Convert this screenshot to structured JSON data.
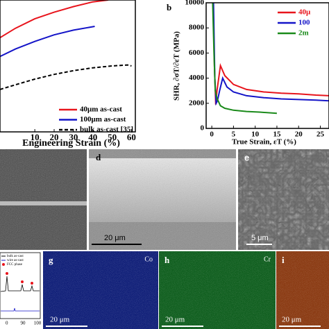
{
  "chart_data": [
    {
      "type": "line",
      "xlabel": "Engineering Strain (%)",
      "xlim": [
        -8,
        62
      ],
      "ylim": [
        0,
        1400
      ],
      "xticks": [
        10,
        20,
        30,
        40,
        50,
        60
      ],
      "series": [
        {
          "name": "40μm as-cast",
          "color": "#e8141c",
          "dash": false,
          "x": [
            -8,
            0,
            10,
            20,
            30,
            40,
            48
          ],
          "values": [
            1000,
            1100,
            1200,
            1270,
            1330,
            1380,
            1400
          ]
        },
        {
          "name": "100μm as-cast",
          "color": "#1414c8",
          "dash": false,
          "x": [
            -8,
            0,
            10,
            20,
            30,
            41
          ],
          "values": [
            800,
            880,
            960,
            1030,
            1080,
            1120
          ]
        },
        {
          "name": "bulk as-cast [35]",
          "color": "#000000",
          "dash": true,
          "x": [
            -8,
            0,
            10,
            20,
            30,
            40,
            50,
            58,
            60
          ],
          "values": [
            450,
            500,
            560,
            610,
            650,
            680,
            700,
            710,
            700
          ]
        }
      ]
    },
    {
      "type": "line",
      "label": "b",
      "ylabel": "SHR, ∂σT/∂εT (MPa)",
      "xlabel": "True Strain, εT (%)",
      "xlim": [
        -1.3,
        27
      ],
      "ylim": [
        0,
        10000
      ],
      "xticks": [
        0,
        5,
        10,
        15,
        20,
        25
      ],
      "yticks": [
        0,
        2000,
        4000,
        6000,
        8000,
        10000
      ],
      "series": [
        {
          "name": "40μ",
          "color": "#e8141c",
          "x": [
            0.3,
            0.6,
            0.9,
            1.2,
            1.6,
            2,
            3,
            5,
            8,
            12,
            16,
            20,
            24,
            27
          ],
          "values": [
            10000,
            5000,
            1900,
            3000,
            4000,
            5000,
            4200,
            3500,
            3100,
            2900,
            2800,
            2750,
            2650,
            2600
          ]
        },
        {
          "name": "100",
          "color": "#1414c8",
          "x": [
            0.4,
            0.7,
            1,
            1.3,
            1.8,
            2.5,
            3.5,
            5,
            8,
            12,
            16,
            20,
            24,
            27
          ],
          "values": [
            10000,
            4000,
            2000,
            2200,
            3000,
            4000,
            3300,
            2900,
            2600,
            2450,
            2350,
            2300,
            2250,
            2200
          ]
        },
        {
          "name": "2m",
          "color": "#1a8a1a",
          "x": [
            0.2,
            0.5,
            0.8,
            1.2,
            2,
            3,
            5,
            8,
            11,
            15
          ],
          "values": [
            10000,
            6000,
            3000,
            2400,
            1800,
            1600,
            1450,
            1350,
            1300,
            1200
          ]
        }
      ]
    }
  ],
  "panels": {
    "d": "d",
    "d_scale": "20 μm",
    "e": "e",
    "e_scale": "5 μm",
    "xrd_legend": [
      "bulk as-cast",
      "wire as-cast",
      "FCC phase"
    ],
    "xrd_ticks": [
      "0",
      "90",
      "100"
    ],
    "g": "g",
    "g_el": "Co",
    "g_scale": "20 μm",
    "h": "h",
    "h_el": "Cr",
    "h_scale": "20 μm",
    "i": "i",
    "i_scale": "20 μm"
  }
}
